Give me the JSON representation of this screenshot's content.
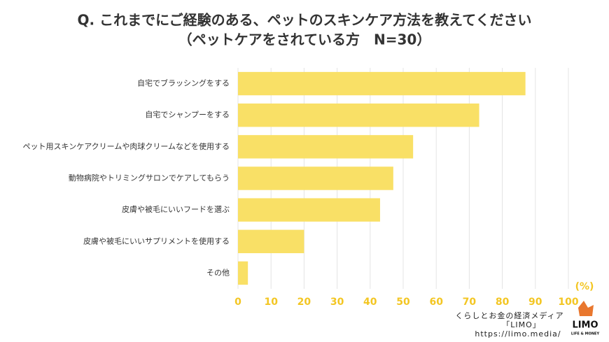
{
  "chart_data": {
    "type": "bar",
    "orientation": "horizontal",
    "title": "Q. これまでにご経験のある、ペットのスキンケア方法を教えてください",
    "subtitle": "（ペットケアをされている方　N=30）",
    "categories": [
      "自宅でブラッシングをする",
      "自宅でシャンプーをする",
      "ペット用スキンケアクリームや肉球クリームなどを使用する",
      "動物病院やトリミングサロンでケアしてもらう",
      "皮膚や被毛にいいフードを選ぶ",
      "皮膚や被毛にいいサプリメントを使用する",
      "その他"
    ],
    "values": [
      87,
      73,
      53,
      47,
      43,
      20,
      3
    ],
    "color": "#f9e066",
    "xlabel": "(%)",
    "xlim": [
      0,
      100
    ],
    "xticks": [
      0,
      10,
      20,
      30,
      40,
      50,
      60,
      70,
      80,
      90,
      100
    ],
    "grid": true
  },
  "footer": {
    "lines": [
      "くらしとお金の経済メディア",
      "「LIMO」",
      "https://limo.media/"
    ],
    "logo": "LIMO",
    "logo_sub": "LIFE & MONEY"
  }
}
